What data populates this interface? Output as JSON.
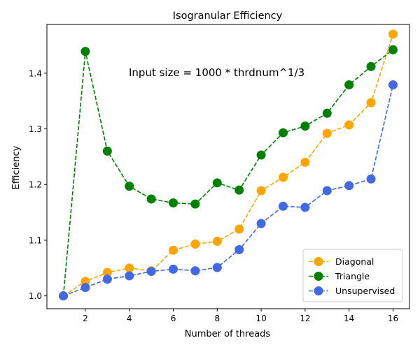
{
  "chart_data": {
    "type": "line",
    "title": "Isogranular Efficiency",
    "xlabel": "Number of threads",
    "ylabel": "Efficiency",
    "annotation": "Input size = 1000 * thrdnum^1/3",
    "xlim": [
      0.25,
      16.75
    ],
    "ylim": [
      0.977,
      1.4875
    ],
    "x_ticks": [
      2,
      4,
      6,
      8,
      10,
      12,
      14,
      16
    ],
    "y_ticks": [
      1.0,
      1.1,
      1.2,
      1.3,
      1.4
    ],
    "grid": false,
    "legend_position": "lower right",
    "x": [
      1,
      2,
      3,
      4,
      5,
      6,
      7,
      8,
      9,
      10,
      11,
      12,
      13,
      14,
      15,
      16
    ],
    "series": [
      {
        "name": "Diagonal",
        "color": "#FFA500",
        "values": [
          1.0,
          1.026,
          1.042,
          1.05,
          1.045,
          1.082,
          1.093,
          1.098,
          1.12,
          1.189,
          1.213,
          1.24,
          1.292,
          1.307,
          1.347,
          1.47
        ]
      },
      {
        "name": "Triangle",
        "color": "#008000",
        "values": [
          1.0,
          1.439,
          1.26,
          1.197,
          1.174,
          1.167,
          1.165,
          1.203,
          1.19,
          1.253,
          1.293,
          1.305,
          1.328,
          1.379,
          1.412,
          1.442
        ]
      },
      {
        "name": "Unsupervised",
        "color": "#4169E1",
        "values": [
          1.0,
          1.015,
          1.03,
          1.036,
          1.044,
          1.048,
          1.045,
          1.051,
          1.083,
          1.13,
          1.161,
          1.159,
          1.189,
          1.198,
          1.21,
          1.379
        ]
      }
    ]
  }
}
